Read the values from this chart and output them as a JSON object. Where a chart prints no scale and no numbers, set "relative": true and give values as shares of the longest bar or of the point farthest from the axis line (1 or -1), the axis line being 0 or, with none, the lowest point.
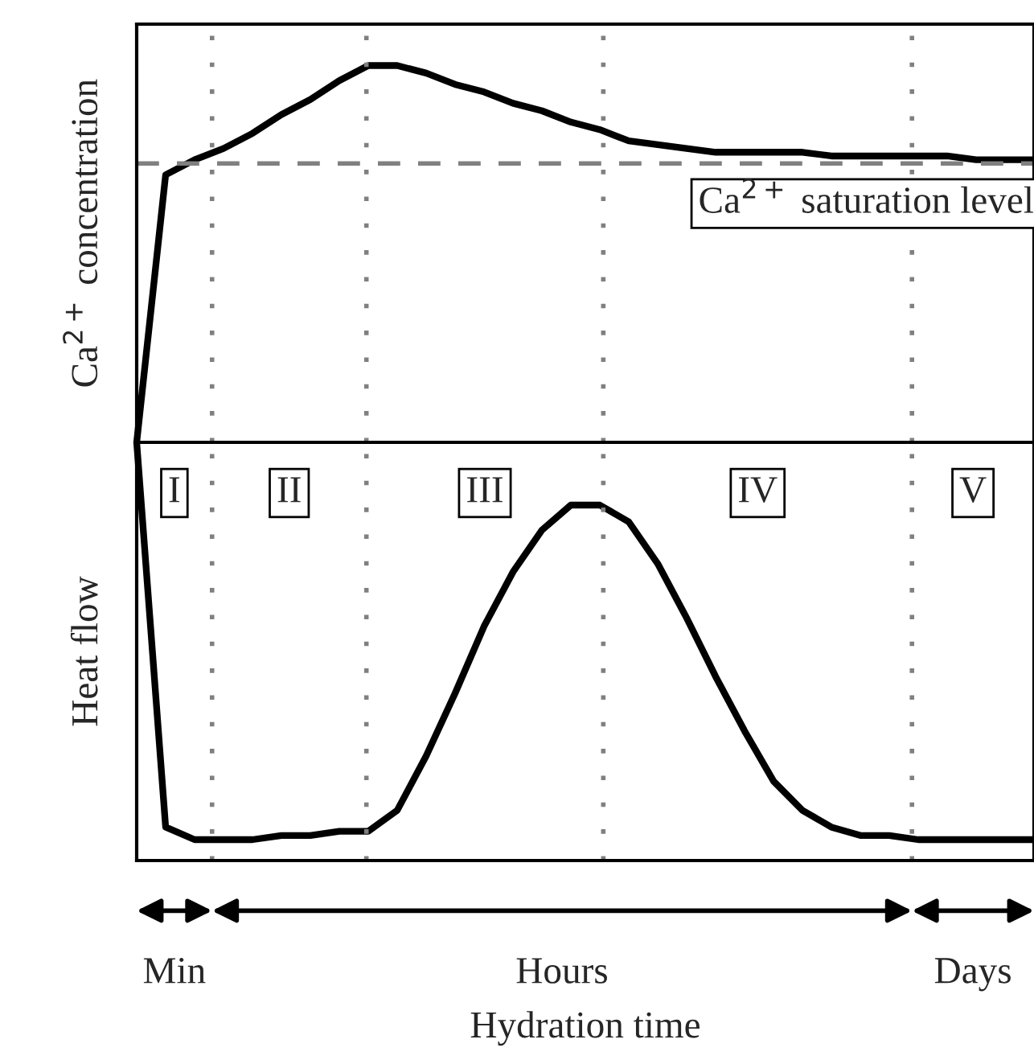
{
  "chart_data": [
    {
      "type": "line",
      "relative": true,
      "ylabel": "Ca$^{2+}$ concentration",
      "color": "#000000",
      "line_style": "solid",
      "categories": [
        null,
        null,
        null,
        null,
        null,
        null,
        null,
        null,
        null,
        null,
        null,
        null,
        null,
        null,
        null,
        null,
        null,
        null,
        null,
        null,
        null,
        null,
        null,
        null,
        null,
        null,
        null,
        null,
        null,
        null,
        null,
        null
      ],
      "values": [
        0,
        0.71,
        0.75,
        0.78,
        0.82,
        0.87,
        0.91,
        0.96,
        1,
        1,
        0.98,
        0.95,
        0.93,
        0.9,
        0.88,
        0.85,
        0.83,
        0.8,
        0.79,
        0.78,
        0.77,
        0.77,
        0.77,
        0.77,
        0.76,
        0.76,
        0.76,
        0.76,
        0.76,
        0.75,
        0.75,
        0.75
      ],
      "ref_lines": [
        {
          "axis": "y",
          "value": 0.74,
          "label": "Ca$^{2+}$ saturation level",
          "color": "#808080",
          "line_style": "dashed"
        }
      ]
    },
    {
      "type": "line",
      "relative": true,
      "ylabel": "Heat flow",
      "xlabel": "Hydration time",
      "color": "#000000",
      "line_style": "solid",
      "categories": [
        null,
        null,
        null,
        null,
        null,
        null,
        null,
        null,
        null,
        null,
        null,
        null,
        null,
        null,
        null,
        null,
        null,
        null,
        null,
        null,
        null,
        null,
        null,
        null,
        null,
        null,
        null,
        null,
        null,
        null,
        null,
        null
      ],
      "values": [
        1,
        0.08,
        0.05,
        0.05,
        0.05,
        0.06,
        0.06,
        0.07,
        0.07,
        0.12,
        0.25,
        0.4,
        0.56,
        0.69,
        0.79,
        0.85,
        0.85,
        0.81,
        0.71,
        0.58,
        0.44,
        0.31,
        0.19,
        0.12,
        0.08,
        0.06,
        0.06,
        0.05,
        0.05,
        0.05,
        0.05,
        0.05
      ],
      "annotations": [
        "I",
        "II",
        "III",
        "IV",
        "V",
        "Min",
        "Hours",
        "Days"
      ]
    }
  ]
}
